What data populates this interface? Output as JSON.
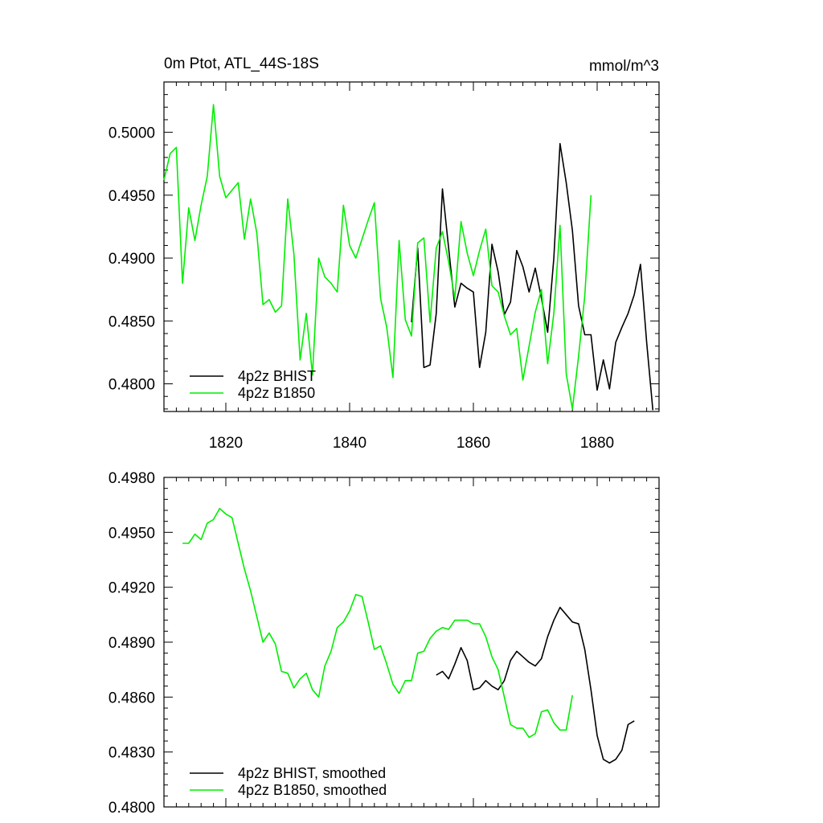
{
  "chart_data": [
    {
      "type": "line",
      "title": "0m Ptot, ATL_44S-18S",
      "units": "mmol/m^3",
      "xlim": [
        1810,
        1890
      ],
      "ylim": [
        0.4778,
        0.504
      ],
      "xticks": [
        1820,
        1840,
        1860,
        1880
      ],
      "xtick_labels": [
        "1820",
        "1840",
        "1860",
        "1880"
      ],
      "yticks": [
        0.48,
        0.485,
        0.49,
        0.495,
        0.5
      ],
      "ytick_labels": [
        "0.4800",
        "0.4850",
        "0.4900",
        "0.4950",
        "0.5000"
      ],
      "legend_position": "bottom-left",
      "grid": false,
      "series": [
        {
          "name": "4p2z BHIST",
          "color": "#000000",
          "x": [
            1850,
            1851,
            1852,
            1853,
            1854,
            1855,
            1856,
            1857,
            1858,
            1859,
            1860,
            1861,
            1862,
            1863,
            1864,
            1865,
            1866,
            1867,
            1868,
            1869,
            1870,
            1871,
            1872,
            1873,
            1874,
            1875,
            1876,
            1877,
            1878,
            1879,
            1880,
            1881,
            1882,
            1883,
            1884,
            1885,
            1886,
            1887,
            1888,
            1889
          ],
          "y": [
            0.4849,
            0.4908,
            0.4813,
            0.4815,
            0.4856,
            0.4955,
            0.4908,
            0.4861,
            0.488,
            0.4876,
            0.4873,
            0.4813,
            0.4841,
            0.4911,
            0.4889,
            0.4855,
            0.4865,
            0.4906,
            0.4893,
            0.4873,
            0.4892,
            0.4868,
            0.4841,
            0.49,
            0.4991,
            0.496,
            0.4922,
            0.4862,
            0.4839,
            0.4839,
            0.4795,
            0.4819,
            0.4796,
            0.4833,
            0.4845,
            0.4856,
            0.4871,
            0.4895,
            0.4833,
            0.4779
          ]
        },
        {
          "name": "4p2z B1850",
          "color": "#00ee00",
          "x": [
            1810,
            1811,
            1812,
            1813,
            1814,
            1815,
            1816,
            1817,
            1818,
            1819,
            1820,
            1821,
            1822,
            1823,
            1824,
            1825,
            1826,
            1827,
            1828,
            1829,
            1830,
            1831,
            1832,
            1833,
            1834,
            1835,
            1836,
            1837,
            1838,
            1839,
            1840,
            1841,
            1842,
            1843,
            1844,
            1845,
            1846,
            1847,
            1848,
            1849,
            1850,
            1851,
            1852,
            1853,
            1854,
            1855,
            1856,
            1857,
            1858,
            1859,
            1860,
            1861,
            1862,
            1863,
            1864,
            1865,
            1866,
            1867,
            1868,
            1869,
            1870,
            1871,
            1872,
            1873,
            1874,
            1875,
            1876,
            1877,
            1878,
            1879
          ],
          "y": [
            0.4962,
            0.4983,
            0.4988,
            0.488,
            0.494,
            0.4914,
            0.4942,
            0.4965,
            0.5022,
            0.4965,
            0.4948,
            0.4954,
            0.496,
            0.4915,
            0.4947,
            0.492,
            0.4863,
            0.4867,
            0.4857,
            0.4862,
            0.4947,
            0.4903,
            0.4819,
            0.4856,
            0.4807,
            0.49,
            0.4885,
            0.488,
            0.4873,
            0.4942,
            0.491,
            0.49,
            0.4915,
            0.493,
            0.4944,
            0.4868,
            0.4845,
            0.4805,
            0.4914,
            0.4851,
            0.4838,
            0.4912,
            0.4916,
            0.4849,
            0.4908,
            0.4921,
            0.4897,
            0.4868,
            0.4929,
            0.4904,
            0.4886,
            0.4906,
            0.4923,
            0.4878,
            0.4873,
            0.4854,
            0.4839,
            0.4844,
            0.4803,
            0.483,
            0.4857,
            0.4875,
            0.4816,
            0.4856,
            0.4926,
            0.4808,
            0.478,
            0.4822,
            0.487,
            0.495
          ]
        }
      ]
    },
    {
      "type": "line",
      "xlim": [
        1810,
        1890
      ],
      "ylim": [
        0.48,
        0.498
      ],
      "xticks": [
        1820,
        1840,
        1860,
        1880
      ],
      "yticks": [
        0.48,
        0.483,
        0.486,
        0.489,
        0.492,
        0.495,
        0.498
      ],
      "ytick_labels": [
        "0.4800",
        "0.4830",
        "0.4860",
        "0.4890",
        "0.4920",
        "0.4950",
        "0.4980"
      ],
      "legend_position": "bottom-left",
      "grid": false,
      "series": [
        {
          "name": "4p2z BHIST, smoothed",
          "color": "#000000",
          "x": [
            1854,
            1855,
            1856,
            1857,
            1858,
            1859,
            1860,
            1861,
            1862,
            1863,
            1864,
            1865,
            1866,
            1867,
            1868,
            1869,
            1870,
            1871,
            1872,
            1873,
            1874,
            1875,
            1876,
            1877,
            1878,
            1879,
            1880,
            1881,
            1882,
            1883,
            1884,
            1885,
            1886
          ],
          "y": [
            0.4872,
            0.4874,
            0.487,
            0.4878,
            0.4887,
            0.488,
            0.4864,
            0.4865,
            0.4869,
            0.4866,
            0.4864,
            0.4869,
            0.488,
            0.4885,
            0.4882,
            0.4879,
            0.4877,
            0.4881,
            0.4893,
            0.4902,
            0.4909,
            0.4905,
            0.4901,
            0.49,
            0.4886,
            0.4864,
            0.4839,
            0.4826,
            0.4824,
            0.4826,
            0.4831,
            0.4845,
            0.4847
          ]
        },
        {
          "name": "4p2z B1850, smoothed",
          "color": "#00ee00",
          "x": [
            1813,
            1814,
            1815,
            1816,
            1817,
            1818,
            1819,
            1820,
            1821,
            1822,
            1823,
            1824,
            1825,
            1826,
            1827,
            1828,
            1829,
            1830,
            1831,
            1832,
            1833,
            1834,
            1835,
            1836,
            1837,
            1838,
            1839,
            1840,
            1841,
            1842,
            1843,
            1844,
            1845,
            1846,
            1847,
            1848,
            1849,
            1850,
            1851,
            1852,
            1853,
            1854,
            1855,
            1856,
            1857,
            1858,
            1859,
            1860,
            1861,
            1862,
            1863,
            1864,
            1865,
            1866,
            1867,
            1868,
            1869,
            1870,
            1871,
            1872,
            1873,
            1874,
            1875,
            1876
          ],
          "y": [
            0.4944,
            0.4944,
            0.4949,
            0.4946,
            0.4955,
            0.4957,
            0.4963,
            0.496,
            0.4958,
            0.4944,
            0.493,
            0.4918,
            0.4904,
            0.489,
            0.4895,
            0.4889,
            0.4874,
            0.4873,
            0.4865,
            0.487,
            0.4873,
            0.4864,
            0.486,
            0.4877,
            0.4885,
            0.4898,
            0.4901,
            0.4907,
            0.4916,
            0.4915,
            0.4901,
            0.4886,
            0.4888,
            0.4878,
            0.4867,
            0.4862,
            0.4869,
            0.4869,
            0.4884,
            0.4885,
            0.4892,
            0.4896,
            0.4898,
            0.4897,
            0.4902,
            0.4902,
            0.4902,
            0.49,
            0.49,
            0.4893,
            0.4882,
            0.4875,
            0.486,
            0.4845,
            0.4843,
            0.4843,
            0.4838,
            0.484,
            0.4852,
            0.4853,
            0.4846,
            0.4842,
            0.4842,
            0.4861
          ]
        }
      ]
    }
  ]
}
